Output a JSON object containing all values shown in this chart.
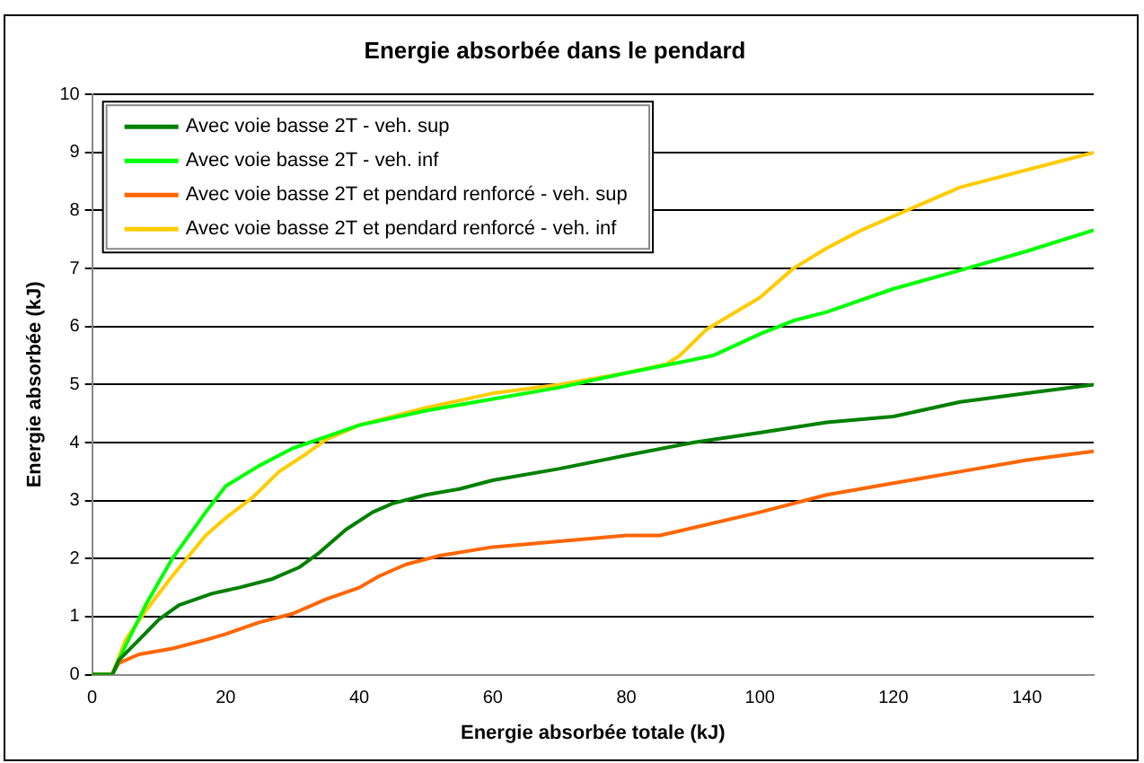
{
  "chart_data": {
    "type": "line",
    "title": "Energie absorbée dans le pendard",
    "xlabel": "Energie absorbée totale (kJ)",
    "ylabel": "Energie absorbée (kJ)",
    "xlim": [
      0,
      150
    ],
    "xticks": [
      0,
      20,
      40,
      60,
      80,
      100,
      120,
      140
    ],
    "ylim": [
      0,
      10
    ],
    "yticks": [
      0,
      1,
      2,
      3,
      4,
      5,
      6,
      7,
      8,
      9,
      10
    ],
    "grid": "y",
    "legend": "top left",
    "marker": "none",
    "line_style": "solid",
    "series": [
      {
        "name": "Avec voie basse 2T - veh. sup",
        "color": "#008000",
        "x": [
          0,
          3,
          4,
          7,
          10,
          13,
          18,
          22,
          27,
          31,
          34,
          38,
          42,
          45,
          50,
          55,
          60,
          70,
          80,
          90,
          100,
          110,
          120,
          130,
          140,
          150
        ],
        "values": [
          0,
          0,
          0.25,
          0.6,
          0.95,
          1.2,
          1.4,
          1.5,
          1.65,
          1.85,
          2.1,
          2.5,
          2.8,
          2.95,
          3.1,
          3.2,
          3.35,
          3.55,
          3.78,
          4.0,
          4.17,
          4.35,
          4.45,
          4.7,
          4.85,
          5.0
        ]
      },
      {
        "name": "Avec voie basse 2T - veh. inf",
        "color": "#00ff00",
        "x": [
          0,
          3,
          5,
          8,
          12,
          17,
          20,
          25,
          30,
          35,
          40,
          50,
          60,
          70,
          80,
          88,
          93,
          100,
          105,
          110,
          120,
          130,
          140,
          150
        ],
        "values": [
          0,
          0,
          0.5,
          1.2,
          2.0,
          2.8,
          3.25,
          3.6,
          3.9,
          4.1,
          4.3,
          4.55,
          4.75,
          4.95,
          5.2,
          5.38,
          5.5,
          5.87,
          6.1,
          6.25,
          6.65,
          6.97,
          7.3,
          7.66
        ]
      },
      {
        "name": "Avec voie basse 2T et pendard renforcé - veh. sup",
        "color": "#ff6600",
        "x": [
          0,
          3,
          4,
          7,
          12,
          17,
          20,
          25,
          30,
          35,
          40,
          43,
          47,
          52,
          60,
          70,
          80,
          85,
          90,
          100,
          110,
          120,
          130,
          140,
          150
        ],
        "values": [
          0,
          0,
          0.2,
          0.35,
          0.45,
          0.6,
          0.7,
          0.9,
          1.05,
          1.3,
          1.5,
          1.7,
          1.9,
          2.05,
          2.2,
          2.3,
          2.4,
          2.4,
          2.53,
          2.8,
          3.1,
          3.3,
          3.5,
          3.7,
          3.85
        ]
      },
      {
        "name": "Avec voie basse 2T et pendard renforcé - veh. inf",
        "color": "#ffcc00",
        "x": [
          0,
          3,
          5,
          8,
          12,
          17,
          20,
          24,
          28,
          32,
          35,
          40,
          50,
          60,
          70,
          80,
          86,
          88,
          92,
          100,
          105,
          110,
          115,
          120,
          130,
          140,
          150
        ],
        "values": [
          0,
          0,
          0.6,
          1.1,
          1.7,
          2.4,
          2.7,
          3.05,
          3.5,
          3.8,
          4.05,
          4.3,
          4.6,
          4.85,
          5.0,
          5.2,
          5.35,
          5.5,
          5.95,
          6.5,
          7.0,
          7.35,
          7.65,
          7.9,
          8.4,
          8.7,
          9.0
        ]
      }
    ]
  }
}
